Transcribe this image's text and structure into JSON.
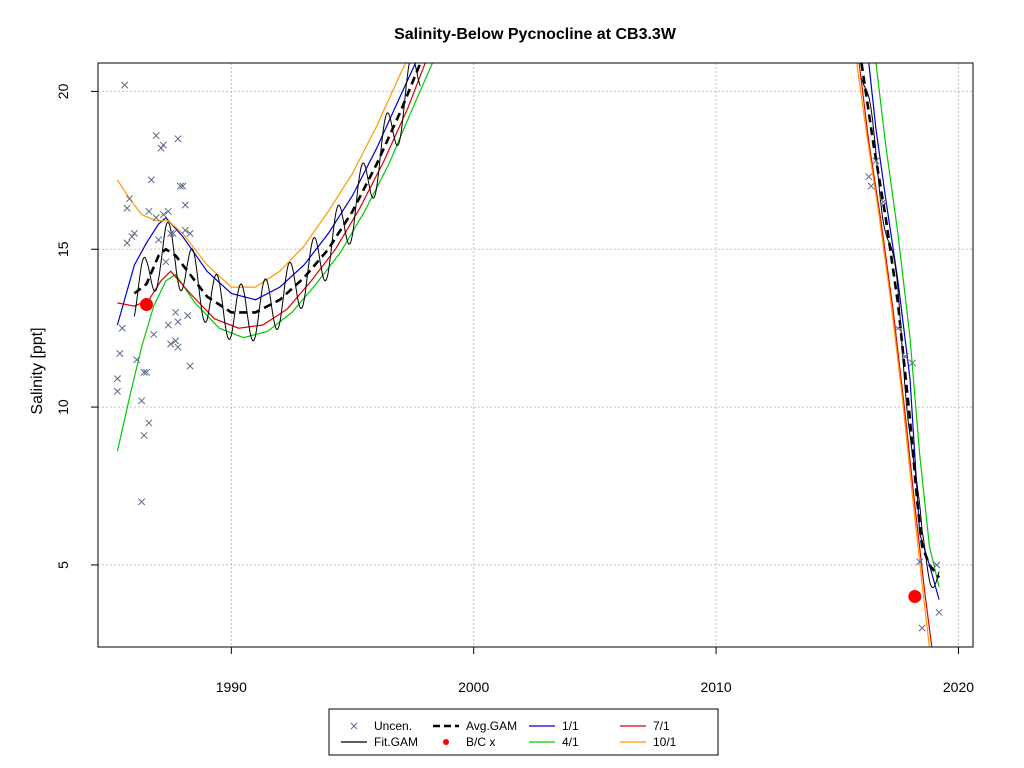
{
  "chart_data": {
    "type": "line",
    "title": "Salinity-Below Pycnocline at CB3.3W",
    "xlabel": "",
    "ylabel": "Salinity [ppt]",
    "xlim": [
      1984.5,
      2020.6
    ],
    "ylim": [
      2.4,
      20.9
    ],
    "x_ticks": [
      1990,
      2000,
      2010,
      2020
    ],
    "y_ticks": [
      5,
      10,
      15,
      20
    ],
    "grid": true,
    "legend_position": "bottom-center",
    "colors": {
      "uncen": "#5a6a8a",
      "fit_gam": "#000000",
      "avg_gam": "#000000",
      "bc_x": "#ff0000",
      "s1_1": "#0000cc",
      "s4_1": "#00cc00",
      "s7_1": "#dd0000",
      "s10_1": "#ff9900",
      "grid": "#c0c0c0"
    },
    "legend": [
      {
        "key": "uncen",
        "label": "Uncen.",
        "symbol": "x"
      },
      {
        "key": "avg_gam",
        "label": "Avg.GAM",
        "symbol": "dash"
      },
      {
        "key": "s1_1",
        "label": "1/1",
        "symbol": "line"
      },
      {
        "key": "s7_1",
        "label": "7/1",
        "symbol": "line"
      },
      {
        "key": "fit_gam",
        "label": "Fit.GAM",
        "symbol": "line"
      },
      {
        "key": "bc_x",
        "label": "B/C x",
        "symbol": "dot"
      },
      {
        "key": "s4_1",
        "label": "4/1",
        "symbol": "line"
      },
      {
        "key": "s10_1",
        "label": "10/1",
        "symbol": "line"
      }
    ],
    "uncensored_points": [
      [
        1985.3,
        10.5
      ],
      [
        1985.3,
        10.9
      ],
      [
        1985.4,
        11.7
      ],
      [
        1985.5,
        12.5
      ],
      [
        1985.6,
        20.2
      ],
      [
        1985.7,
        16.3
      ],
      [
        1985.7,
        15.2
      ],
      [
        1985.8,
        16.6
      ],
      [
        1985.9,
        15.4
      ],
      [
        1986.0,
        15.5
      ],
      [
        1986.1,
        11.5
      ],
      [
        1986.3,
        7.0
      ],
      [
        1986.3,
        10.2
      ],
      [
        1986.4,
        9.1
      ],
      [
        1986.4,
        11.1
      ],
      [
        1986.5,
        11.1
      ],
      [
        1986.6,
        9.5
      ],
      [
        1986.6,
        16.2
      ],
      [
        1986.7,
        17.2
      ],
      [
        1986.8,
        12.3
      ],
      [
        1986.9,
        18.6
      ],
      [
        1986.9,
        16.0
      ],
      [
        1987.0,
        15.3
      ],
      [
        1987.1,
        18.2
      ],
      [
        1987.2,
        18.3
      ],
      [
        1987.2,
        16.1
      ],
      [
        1987.3,
        14.6
      ],
      [
        1987.4,
        16.2
      ],
      [
        1987.4,
        12.6
      ],
      [
        1987.5,
        15.5
      ],
      [
        1987.5,
        12.0
      ],
      [
        1987.6,
        15.5
      ],
      [
        1987.7,
        13.0
      ],
      [
        1987.7,
        12.1
      ],
      [
        1987.8,
        11.9
      ],
      [
        1987.8,
        12.7
      ],
      [
        1987.8,
        18.5
      ],
      [
        1987.9,
        17.0
      ],
      [
        1988.0,
        17.0
      ],
      [
        1988.1,
        16.4
      ],
      [
        1988.1,
        15.6
      ],
      [
        1988.2,
        12.9
      ],
      [
        1988.3,
        11.3
      ],
      [
        1988.3,
        15.5
      ],
      [
        2016.3,
        17.3
      ],
      [
        2016.4,
        17.0
      ],
      [
        2016.6,
        17.8
      ],
      [
        2016.9,
        16.5
      ],
      [
        2017.5,
        12.5
      ],
      [
        2017.8,
        11.6
      ],
      [
        2018.1,
        11.4
      ],
      [
        2018.4,
        5.1
      ],
      [
        2018.5,
        3.0
      ],
      [
        2019.1,
        5.0
      ],
      [
        2019.2,
        3.5
      ]
    ],
    "bc_points": [
      [
        1986.5,
        13.25
      ],
      [
        2018.2,
        4.0
      ]
    ],
    "avg_gam": {
      "segment1": [
        [
          1986.0,
          13.6
        ],
        [
          1986.5,
          13.9
        ],
        [
          1987.0,
          14.8
        ],
        [
          1987.3,
          15.0
        ],
        [
          1987.7,
          14.8
        ],
        [
          1988.3,
          14.2
        ],
        [
          1989.0,
          13.5
        ],
        [
          1990.0,
          13.0
        ],
        [
          1991.0,
          13.0
        ],
        [
          1992.0,
          13.4
        ],
        [
          1993.0,
          14.1
        ],
        [
          1994.0,
          15.0
        ],
        [
          1995.0,
          16.2
        ],
        [
          1996.0,
          17.7
        ],
        [
          1997.0,
          19.4
        ],
        [
          1997.8,
          20.9
        ]
      ],
      "segment2": [
        [
          2016.0,
          20.9
        ],
        [
          2016.5,
          18.3
        ],
        [
          2017.0,
          16.0
        ],
        [
          2017.5,
          13.3
        ],
        [
          2018.0,
          9.6
        ],
        [
          2018.3,
          7.0
        ],
        [
          2018.5,
          5.6
        ],
        [
          2018.8,
          5.0
        ],
        [
          2019.0,
          4.8
        ],
        [
          2019.2,
          4.6
        ]
      ]
    },
    "series": [
      {
        "name": "1/1",
        "key": "s1_1",
        "segment1": [
          [
            1985.3,
            12.6
          ],
          [
            1986.0,
            14.5
          ],
          [
            1986.5,
            15.2
          ],
          [
            1987.0,
            15.8
          ],
          [
            1987.3,
            16.0
          ],
          [
            1988.0,
            15.4
          ],
          [
            1989.0,
            14.3
          ],
          [
            1990.0,
            13.6
          ],
          [
            1991.0,
            13.4
          ],
          [
            1992.0,
            13.8
          ],
          [
            1993.0,
            14.5
          ],
          [
            1994.0,
            15.5
          ],
          [
            1995.0,
            16.7
          ],
          [
            1996.0,
            18.2
          ],
          [
            1997.0,
            19.9
          ],
          [
            1997.6,
            20.9
          ]
        ],
        "segment2": [
          [
            2016.3,
            20.9
          ],
          [
            2016.6,
            18.8
          ],
          [
            2017.0,
            16.6
          ],
          [
            2017.5,
            14.0
          ],
          [
            2018.0,
            10.9
          ],
          [
            2018.4,
            6.0
          ],
          [
            2018.8,
            5.0
          ],
          [
            2019.2,
            3.9
          ]
        ]
      },
      {
        "name": "4/1",
        "key": "s4_1",
        "segment1": [
          [
            1985.3,
            8.6
          ],
          [
            1985.8,
            10.3
          ],
          [
            1986.3,
            11.9
          ],
          [
            1986.8,
            13.2
          ],
          [
            1987.3,
            14.0
          ],
          [
            1987.7,
            14.2
          ],
          [
            1988.5,
            13.3
          ],
          [
            1989.5,
            12.5
          ],
          [
            1990.5,
            12.2
          ],
          [
            1991.5,
            12.4
          ],
          [
            1992.5,
            13.0
          ],
          [
            1993.5,
            13.9
          ],
          [
            1994.5,
            14.9
          ],
          [
            1995.5,
            16.2
          ],
          [
            1996.5,
            17.7
          ],
          [
            1997.5,
            19.5
          ],
          [
            1998.3,
            20.9
          ]
        ],
        "segment2": [
          [
            2016.6,
            20.9
          ],
          [
            2017.0,
            18.3
          ],
          [
            2017.5,
            15.5
          ],
          [
            2018.0,
            12.2
          ],
          [
            2018.4,
            8.5
          ],
          [
            2018.8,
            5.6
          ],
          [
            2019.2,
            4.3
          ]
        ]
      },
      {
        "name": "7/1",
        "key": "s7_1",
        "segment1": [
          [
            1985.3,
            13.3
          ],
          [
            1986.0,
            13.2
          ],
          [
            1986.6,
            13.4
          ],
          [
            1987.1,
            14.0
          ],
          [
            1987.5,
            14.3
          ],
          [
            1988.3,
            13.6
          ],
          [
            1989.3,
            12.8
          ],
          [
            1990.3,
            12.5
          ],
          [
            1991.3,
            12.6
          ],
          [
            1992.3,
            13.1
          ],
          [
            1993.3,
            14.0
          ],
          [
            1994.3,
            15.0
          ],
          [
            1995.3,
            16.3
          ],
          [
            1996.3,
            17.8
          ],
          [
            1997.3,
            19.5
          ],
          [
            1998.0,
            20.9
          ]
        ],
        "segment2": [
          [
            2015.9,
            20.9
          ],
          [
            2016.3,
            18.4
          ],
          [
            2016.8,
            15.9
          ],
          [
            2017.3,
            13.1
          ],
          [
            2017.8,
            9.8
          ],
          [
            2018.2,
            6.9
          ],
          [
            2018.6,
            4.2
          ],
          [
            2018.9,
            2.4
          ]
        ]
      },
      {
        "name": "10/1",
        "key": "s10_1",
        "segment1": [
          [
            1985.3,
            17.2
          ],
          [
            1985.8,
            16.6
          ],
          [
            1986.3,
            16.1
          ],
          [
            1986.9,
            15.9
          ],
          [
            1987.4,
            15.9
          ],
          [
            1988.0,
            15.5
          ],
          [
            1989.0,
            14.5
          ],
          [
            1990.0,
            13.8
          ],
          [
            1991.0,
            13.8
          ],
          [
            1992.0,
            14.3
          ],
          [
            1993.0,
            15.1
          ],
          [
            1994.0,
            16.2
          ],
          [
            1995.0,
            17.4
          ],
          [
            1996.0,
            18.9
          ],
          [
            1997.0,
            20.6
          ],
          [
            1997.2,
            20.9
          ]
        ],
        "segment2": [
          [
            2015.8,
            20.9
          ],
          [
            2016.2,
            18.7
          ],
          [
            2016.7,
            16.2
          ],
          [
            2017.2,
            13.4
          ],
          [
            2017.7,
            10.2
          ],
          [
            2018.1,
            7.2
          ],
          [
            2018.5,
            4.4
          ],
          [
            2018.8,
            2.4
          ]
        ]
      }
    ]
  }
}
